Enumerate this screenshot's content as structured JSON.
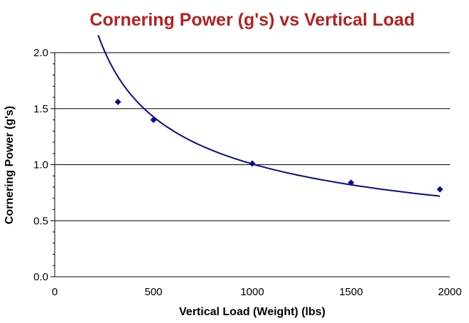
{
  "chart_data": {
    "type": "scatter",
    "title": "Cornering Power (g's) vs Vertical Load",
    "xlabel": "Vertical Load (Weight) (lbs)",
    "ylabel": "Cornering Power (g's)",
    "xlim": [
      0,
      2000
    ],
    "ylim": [
      0,
      2.0
    ],
    "x_ticks": [
      0,
      500,
      1000,
      1500,
      2000
    ],
    "x_tick_labels": [
      "0",
      "500",
      "1000",
      "1500",
      "2000"
    ],
    "y_ticks": [
      0,
      0.5,
      1.0,
      1.5,
      2.0
    ],
    "y_tick_labels": [
      "0.0",
      "0.5",
      "1.0",
      "1.5",
      "2.0"
    ],
    "grid": "horizontal",
    "legend": "none",
    "series": [
      {
        "kind": "markers",
        "marker": "diamond",
        "x": [
          320,
          500,
          1000,
          1500,
          1950
        ],
        "y": [
          1.56,
          1.4,
          1.01,
          0.84,
          0.78
        ]
      },
      {
        "kind": "trendline",
        "form": "power",
        "coefficient": 32.5,
        "exponent": -0.503,
        "x_range": [
          220,
          1950
        ]
      }
    ],
    "colors": {
      "title": "#b22222",
      "series": "#0a0a8c",
      "grid": "#000000",
      "text": "#000000"
    }
  }
}
